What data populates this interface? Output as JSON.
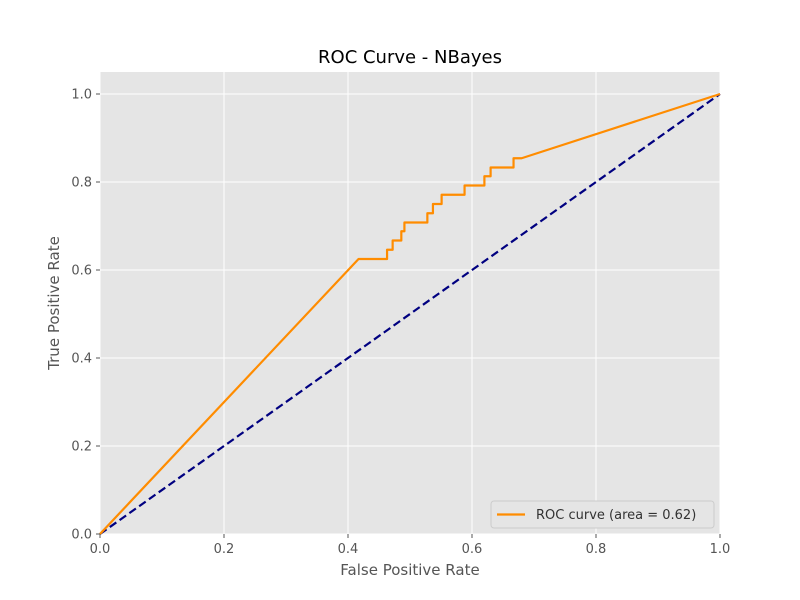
{
  "chart_data": {
    "type": "line",
    "title": "ROC Curve - NBayes",
    "xlabel": "False Positive Rate",
    "ylabel": "True Positive Rate",
    "xlim": [
      0.0,
      1.0
    ],
    "ylim": [
      0.0,
      1.05
    ],
    "x_ticks": [
      "0.0",
      "0.2",
      "0.4",
      "0.6",
      "0.8",
      "1.0"
    ],
    "y_ticks": [
      "0.0",
      "0.2",
      "0.4",
      "0.6",
      "0.8",
      "1.0"
    ],
    "x_tick_values": [
      0.0,
      0.2,
      0.4,
      0.6,
      0.8,
      1.0
    ],
    "y_tick_values": [
      0.0,
      0.2,
      0.4,
      0.6,
      0.8,
      1.0
    ],
    "grid": true,
    "legend_position": "lower right",
    "series": [
      {
        "name": "ROC curve (area = 0.62)",
        "color": "#ff8c00",
        "style": "solid",
        "x": [
          0.0,
          0.417,
          0.463,
          0.463,
          0.472,
          0.472,
          0.486,
          0.486,
          0.491,
          0.491,
          0.528,
          0.528,
          0.537,
          0.537,
          0.551,
          0.551,
          0.588,
          0.588,
          0.62,
          0.62,
          0.63,
          0.63,
          0.667,
          0.667,
          0.68,
          1.0
        ],
        "y": [
          0.0,
          0.625,
          0.625,
          0.646,
          0.646,
          0.667,
          0.667,
          0.688,
          0.688,
          0.708,
          0.708,
          0.729,
          0.729,
          0.75,
          0.75,
          0.771,
          0.771,
          0.792,
          0.792,
          0.813,
          0.813,
          0.833,
          0.833,
          0.854,
          0.854,
          1.0
        ]
      },
      {
        "name": "",
        "color": "#000080",
        "style": "dashed",
        "x": [
          0.0,
          1.0
        ],
        "y": [
          0.0,
          1.0
        ]
      }
    ]
  }
}
